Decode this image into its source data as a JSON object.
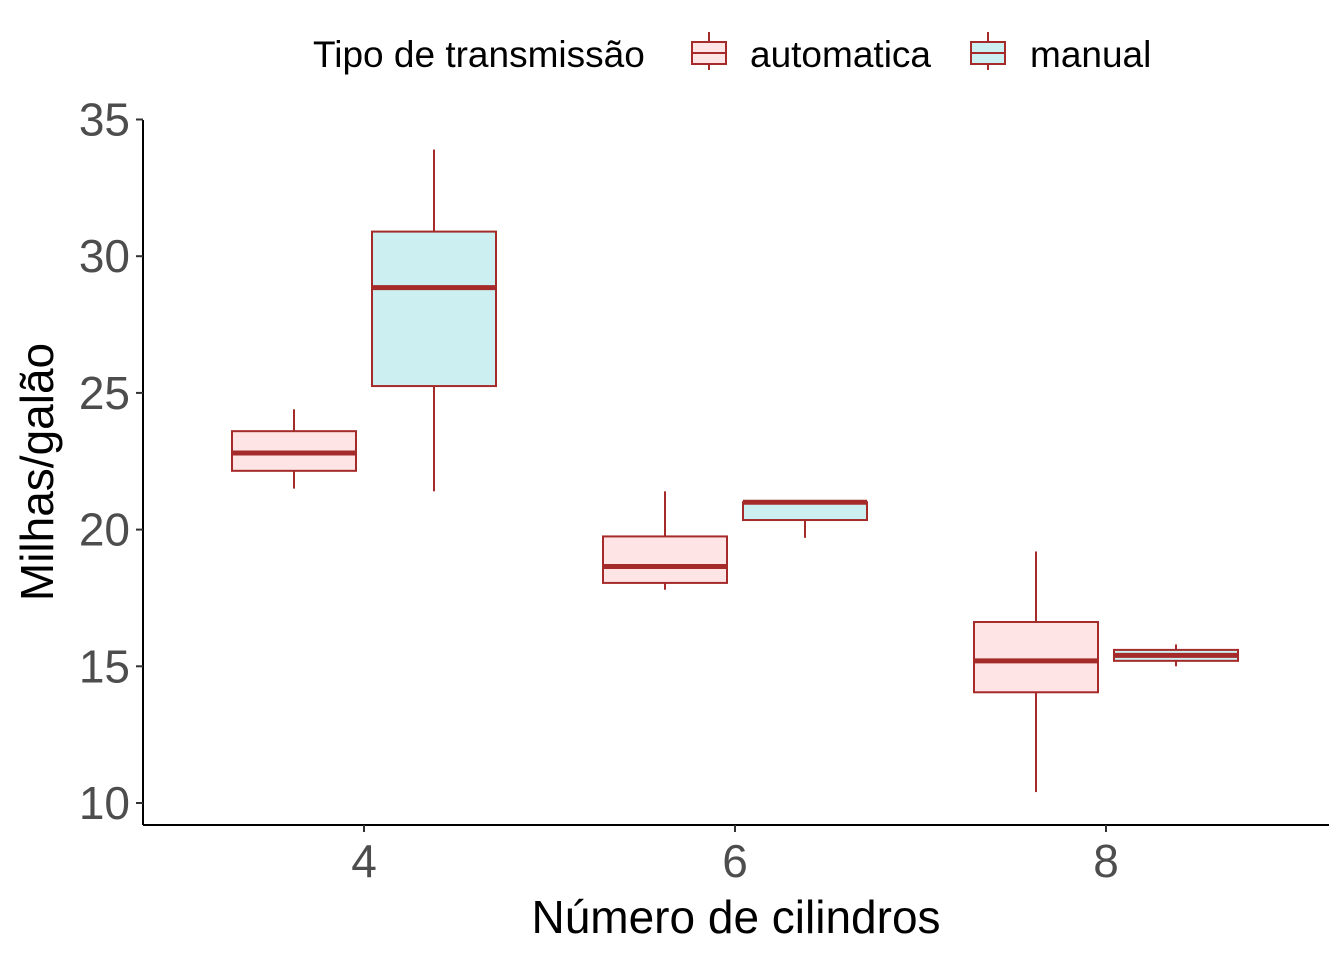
{
  "chart_data": {
    "type": "boxplot",
    "xlabel": "Número de cilindros",
    "ylabel": "Milhas/galão",
    "categories": [
      "4",
      "6",
      "8"
    ],
    "yticks": [
      "10",
      "15",
      "20",
      "25",
      "30",
      "35"
    ],
    "ylim": [
      10,
      35
    ],
    "grid": false,
    "legend": {
      "title": "Tipo de transmissão",
      "position": "top",
      "entries": [
        "automatica",
        "manual"
      ]
    },
    "colors": {
      "outline": "#A52A2A",
      "automatica": "#FFE4E6",
      "manual": "#CCF0F2",
      "tick_text": "#4d4d4d"
    },
    "series": [
      {
        "name": "automatica",
        "boxes": [
          {
            "category": "4",
            "min": 21.5,
            "q1": 22.15,
            "median": 22.8,
            "q3": 23.6,
            "max": 24.4
          },
          {
            "category": "6",
            "min": 17.8,
            "q1": 18.05,
            "median": 18.65,
            "q3": 19.75,
            "max": 21.4
          },
          {
            "category": "8",
            "min": 10.4,
            "q1": 14.05,
            "median": 15.2,
            "q3": 16.62,
            "max": 19.2
          }
        ]
      },
      {
        "name": "manual",
        "boxes": [
          {
            "category": "4",
            "min": 21.4,
            "q1": 25.25,
            "median": 28.85,
            "q3": 30.9,
            "max": 33.9
          },
          {
            "category": "6",
            "min": 19.7,
            "q1": 20.35,
            "median": 21.0,
            "q3": 21.0,
            "max": 21.0
          },
          {
            "category": "8",
            "min": 15.0,
            "q1": 15.2,
            "median": 15.4,
            "q3": 15.6,
            "max": 15.8
          }
        ]
      }
    ]
  }
}
